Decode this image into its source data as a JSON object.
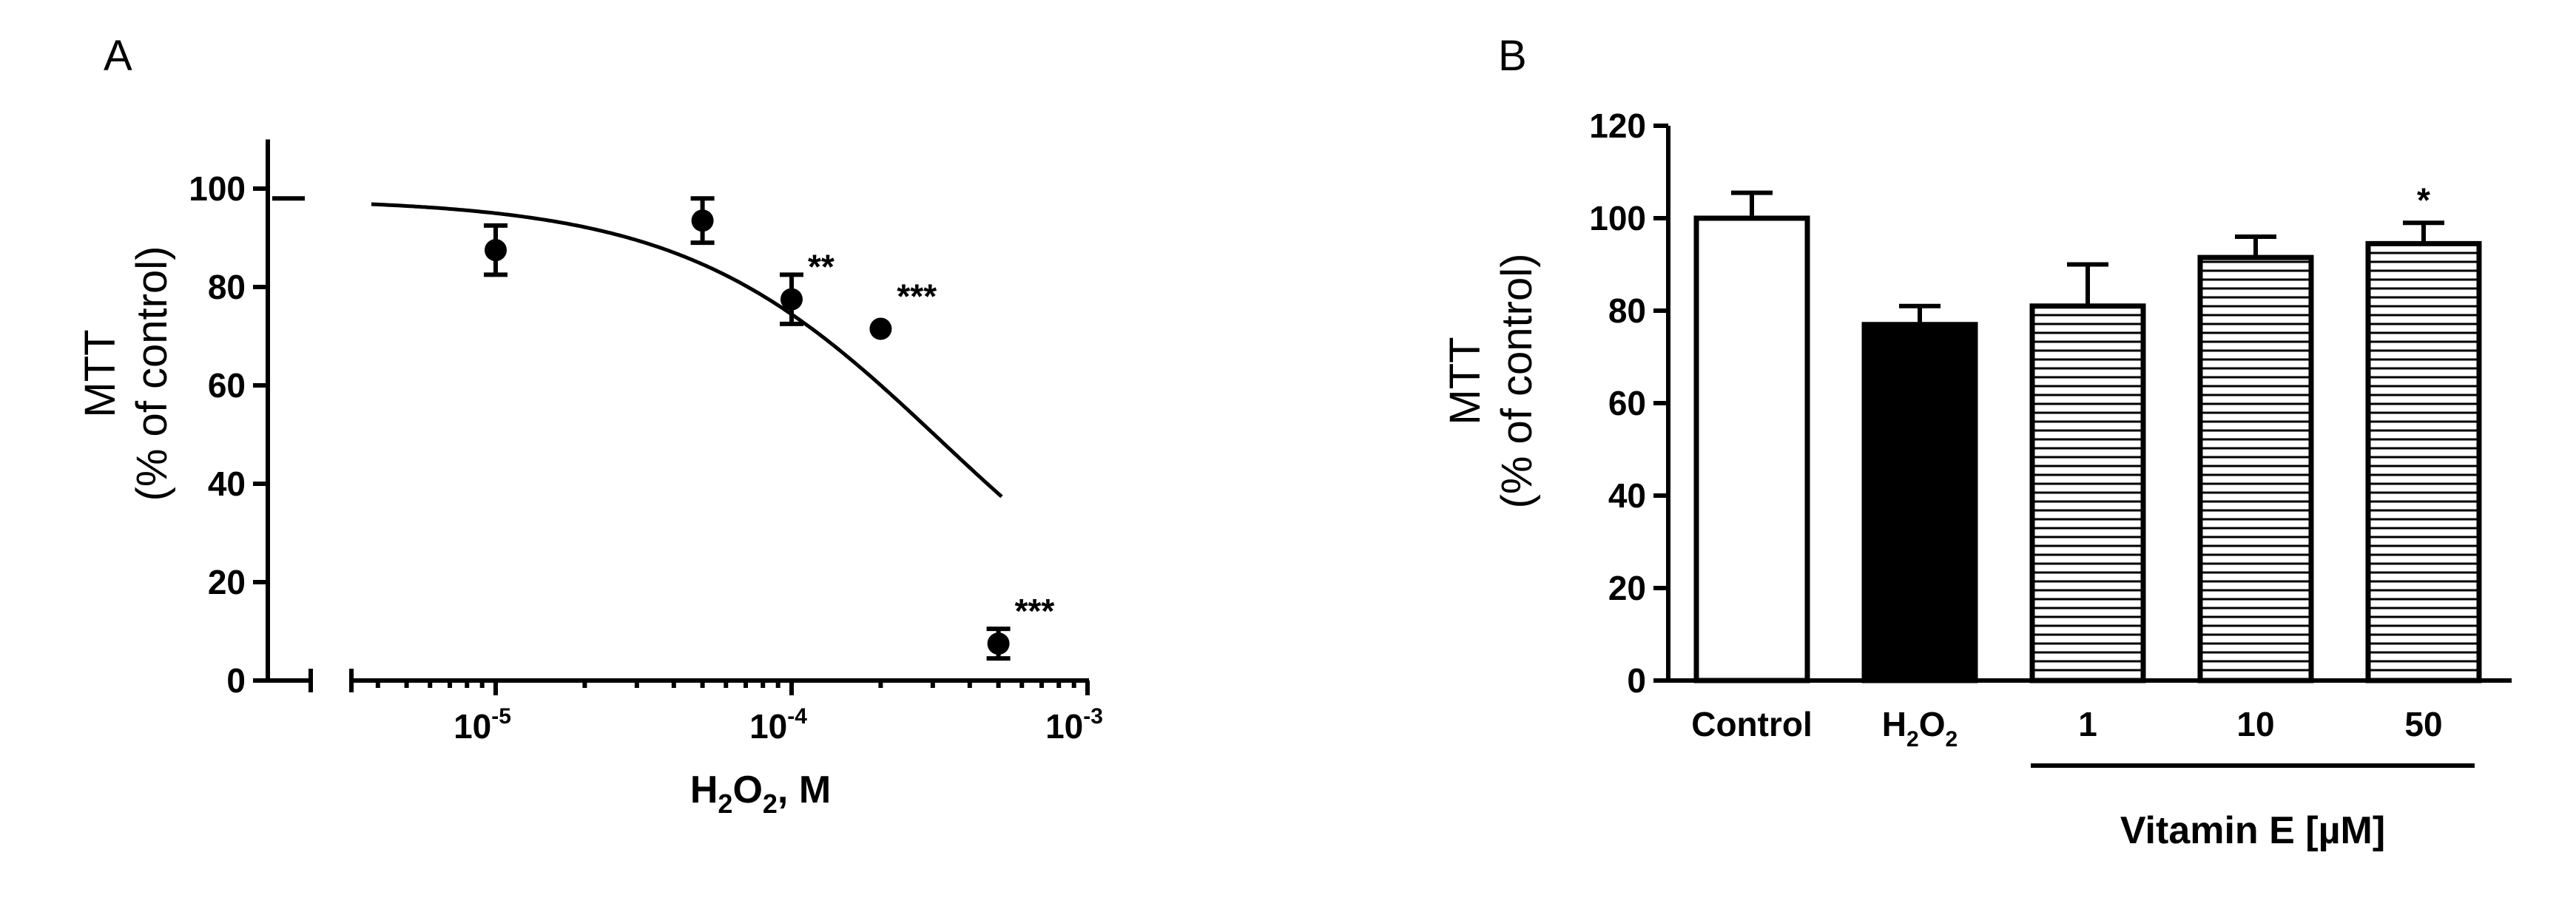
{
  "chart_data": [
    {
      "panel": "A",
      "type": "scatter",
      "ylabel_line1": "MTT",
      "ylabel_line2": "(% of control)",
      "xlabel_main": "H",
      "xlabel_sub1": "2",
      "xlabel_mid": "O",
      "xlabel_sub2": "2",
      "xlabel_tail": ", M",
      "x_scale": "log",
      "xlim": [
        2e-06,
        0.001
      ],
      "ylim": [
        0,
        110
      ],
      "x_ticks": [
        {
          "value": 1e-05,
          "base": "10",
          "exp": "-5"
        },
        {
          "value": 0.0001,
          "base": "10",
          "exp": "-4"
        },
        {
          "value": 0.001,
          "base": "10",
          "exp": "-3"
        }
      ],
      "y_ticks": [
        0,
        20,
        40,
        60,
        80,
        100
      ],
      "control_value": 98,
      "points": [
        {
          "x": 1e-05,
          "y": 87.5,
          "err": 5,
          "sig": ""
        },
        {
          "x": 5e-05,
          "y": 93.5,
          "err": 4.5,
          "sig": ""
        },
        {
          "x": 0.0001,
          "y": 77.5,
          "err": 5,
          "sig": "**"
        },
        {
          "x": 0.0002,
          "y": 71.5,
          "err": 0,
          "sig": "***"
        },
        {
          "x": 0.0005,
          "y": 7.5,
          "err": 3,
          "sig": "***"
        }
      ],
      "fit": {
        "top": 98,
        "bottom": 0,
        "log_ic50": -3.5,
        "hill": 1
      }
    },
    {
      "panel": "B",
      "type": "bar",
      "ylabel_line1": "MTT",
      "ylabel_line2": "(% of control)",
      "ylim": [
        0,
        120
      ],
      "y_ticks": [
        0,
        20,
        40,
        60,
        80,
        100,
        120
      ],
      "categories": [
        "Control",
        "H2O2",
        "1",
        "10",
        "50"
      ],
      "values": [
        100,
        77,
        81,
        91.5,
        94.5
      ],
      "errors": [
        5.5,
        4,
        9,
        4.5,
        4.5
      ],
      "fills": [
        "white",
        "black",
        "hatched",
        "hatched",
        "hatched"
      ],
      "significance": [
        "",
        "",
        "",
        "",
        "*"
      ],
      "group_label": "Vitamin E [µM]",
      "group_members": [
        "1",
        "10",
        "50"
      ]
    }
  ]
}
